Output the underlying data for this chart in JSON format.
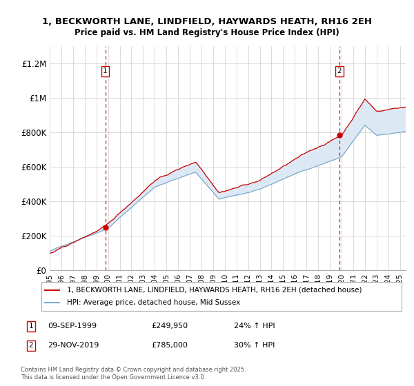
{
  "title": "1, BECKWORTH LANE, LINDFIELD, HAYWARDS HEATH, RH16 2EH",
  "subtitle": "Price paid vs. HM Land Registry's House Price Index (HPI)",
  "red_label": "1, BECKWORTH LANE, LINDFIELD, HAYWARDS HEATH, RH16 2EH (detached house)",
  "blue_label": "HPI: Average price, detached house, Mid Sussex",
  "annotation1_label": "1",
  "annotation1_date": "09-SEP-1999",
  "annotation1_price": "£249,950",
  "annotation1_hpi": "24% ↑ HPI",
  "annotation2_label": "2",
  "annotation2_date": "29-NOV-2019",
  "annotation2_price": "£785,000",
  "annotation2_hpi": "30% ↑ HPI",
  "footnote": "Contains HM Land Registry data © Crown copyright and database right 2025.\nThis data is licensed under the Open Government Licence v3.0.",
  "red_color": "#cc0000",
  "blue_color": "#7faacc",
  "fill_color": "#dce9f5",
  "dashed_color": "#cc0000",
  "ylim": [
    0,
    1300000
  ],
  "yticks": [
    0,
    200000,
    400000,
    600000,
    800000,
    1000000,
    1200000
  ],
  "ytick_labels": [
    "£0",
    "£200K",
    "£400K",
    "£600K",
    "£800K",
    "£1M",
    "£1.2M"
  ],
  "sale1_year_idx": 57,
  "sale1_price": 249950,
  "sale2_year_idx": 297,
  "sale2_price": 785000,
  "xmin": 1995.0,
  "xmax": 2025.5
}
